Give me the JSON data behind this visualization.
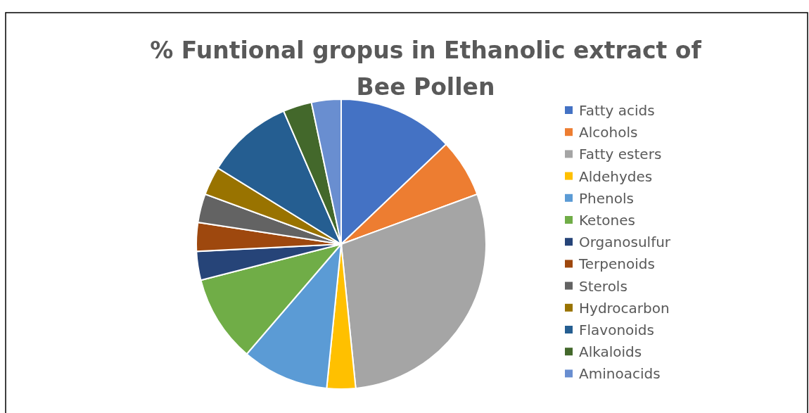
{
  "chart_data": {
    "type": "pie",
    "title": "% Funtional gropus in Ethanolic extract of Bee Pollen",
    "categories": [
      "Fatty acids",
      "Alcohols",
      "Fatty esters",
      "Aldehydes",
      "Phenols",
      "Ketones",
      "Organosulfur",
      "Terpenoids",
      "Sterols",
      "Hydrocarbon",
      "Flavonoids",
      "Alkaloids",
      "Aminoacids"
    ],
    "values": [
      12.9,
      6.5,
      29,
      3.2,
      9.7,
      9.7,
      3.2,
      3.2,
      3.2,
      3.2,
      9.7,
      3.2,
      3.3
    ],
    "colors": [
      "#4472c4",
      "#ed7d31",
      "#a5a5a5",
      "#ffc000",
      "#5b9bd5",
      "#70ad47",
      "#264478",
      "#9e480e",
      "#636363",
      "#997300",
      "#255e91",
      "#43682b",
      "#698ed0"
    ],
    "legend": "right"
  }
}
